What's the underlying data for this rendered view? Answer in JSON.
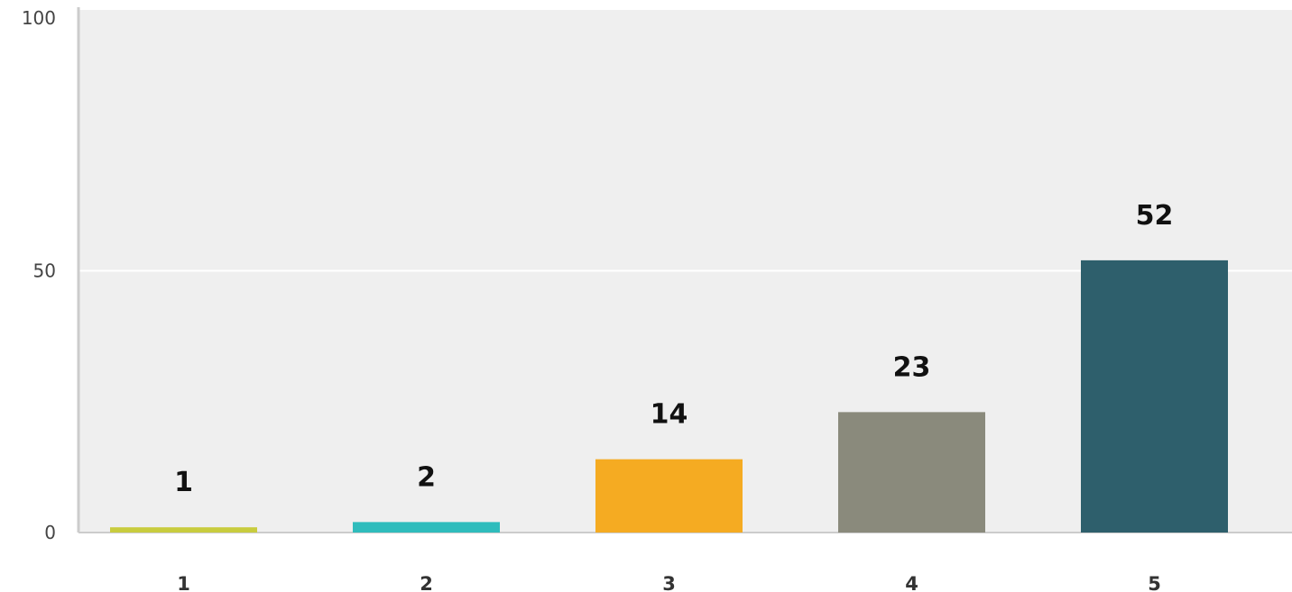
{
  "chart_data": {
    "type": "bar",
    "categories": [
      "1",
      "2",
      "3",
      "4",
      "5"
    ],
    "values": [
      1,
      2,
      14,
      23,
      52
    ],
    "data_labels": [
      "1",
      "2",
      "14",
      "23",
      "52"
    ],
    "ylim": [
      0,
      100
    ],
    "yticks": [
      0,
      50,
      100
    ],
    "ytick_labels": [
      "0",
      "50",
      "100"
    ],
    "grid": true,
    "legend": "none",
    "bar_colors": [
      "#c8cc3e",
      "#2fbcbc",
      "#f5ab22",
      "#8a8a7c",
      "#2e5f6c"
    ],
    "plot_background": "#efefef",
    "gridline_color": "#ffffff",
    "axis_color": "#cccccc"
  }
}
